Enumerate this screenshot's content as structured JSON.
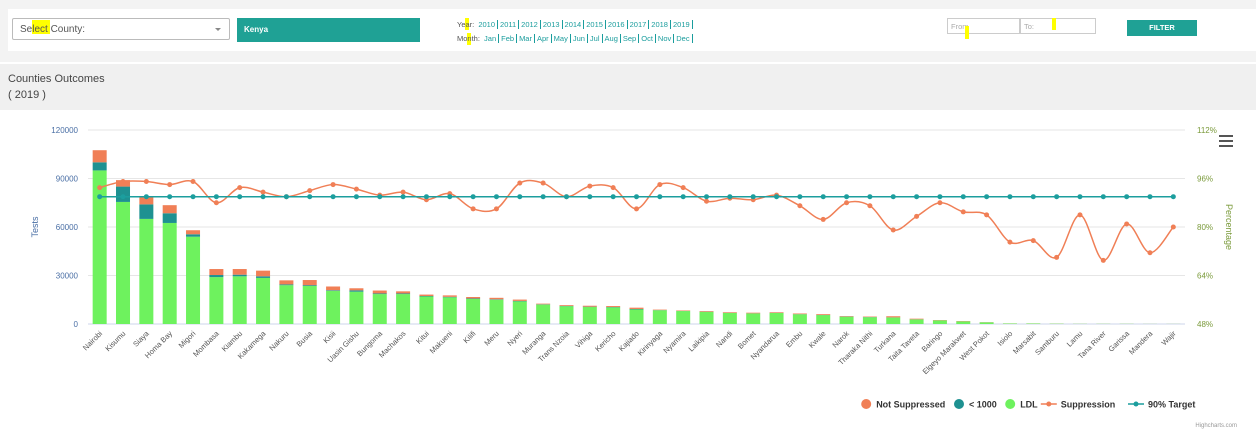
{
  "filters": {
    "county_placeholder": "Select County:",
    "country": "Kenya",
    "year_label": "Year:",
    "years": [
      "2010",
      "2011",
      "2012",
      "2013",
      "2014",
      "2015",
      "2016",
      "2017",
      "2018",
      "2019"
    ],
    "month_label": "Month:",
    "months": [
      "Jan",
      "Feb",
      "Mar",
      "Apr",
      "May",
      "Jun",
      "Jul",
      "Aug",
      "Sep",
      "Oct",
      "Nov",
      "Dec"
    ],
    "from": "From",
    "to": "To:",
    "button": "FILTER"
  },
  "panel": {
    "title": "Counties Outcomes",
    "subtitle": "( 2019 )"
  },
  "credit": "Highcharts.com",
  "chart_data": {
    "type": "bar",
    "categories": [
      "Nairobi",
      "Kisumu",
      "Siaya",
      "Homa Bay",
      "Migori",
      "Mombasa",
      "Kiambu",
      "Kakamega",
      "Nakuru",
      "Busia",
      "Kisii",
      "Uasin Gishu",
      "Bungoma",
      "Machakos",
      "Kitui",
      "Makueni",
      "Kilifi",
      "Meru",
      "Nyeri",
      "Muranga",
      "Trans Nzoia",
      "Vihiga",
      "Kericho",
      "Kajiado",
      "Kirinyaga",
      "Nyamira",
      "Laikipia",
      "Nandi",
      "Bomet",
      "Nyandarua",
      "Embu",
      "Kwale",
      "Narok",
      "Tharaka Nithi",
      "Turkana",
      "Taita Taveta",
      "Baringo",
      "Elgeyo Marakwet",
      "West Pokot",
      "Isiolo",
      "Marsabit",
      "Samburu",
      "Lamu",
      "Tana River",
      "Garissa",
      "Mandera",
      "Wajir"
    ],
    "ylabel": "Tests",
    "y2label": "Percentage",
    "ylim": [
      0,
      120000
    ],
    "yticks": [
      0,
      30000,
      60000,
      90000,
      120000
    ],
    "y2lim": [
      48,
      112
    ],
    "y2ticks": [
      {
        "value": 48,
        "label": "48%"
      },
      {
        "value": 64,
        "label": "64%"
      },
      {
        "value": 80,
        "label": "80%"
      },
      {
        "value": 96,
        "label": "96%"
      },
      {
        "value": 112,
        "label": "112%"
      }
    ],
    "series": [
      {
        "name": "Not Suppressed",
        "type": "bar",
        "color": "#f07f56",
        "values": [
          7500,
          4000,
          4500,
          5000,
          2500,
          3700,
          3500,
          3500,
          2500,
          3200,
          2300,
          1300,
          1800,
          1300,
          900,
          900,
          900,
          900,
          800,
          400,
          500,
          600,
          600,
          800,
          300,
          300,
          400,
          400,
          400,
          400,
          400,
          500,
          300,
          300,
          700,
          400,
          200,
          200,
          100,
          50,
          50,
          50,
          30,
          30,
          30,
          20,
          20
        ]
      },
      {
        "name": "< 1000",
        "type": "bar",
        "color": "#1e9191",
        "values": [
          5000,
          9500,
          9000,
          6000,
          1500,
          1300,
          1000,
          1000,
          500,
          500,
          400,
          800,
          400,
          400,
          300,
          300,
          300,
          300,
          300,
          200,
          200,
          200,
          200,
          300,
          100,
          100,
          100,
          100,
          100,
          100,
          100,
          100,
          100,
          100,
          100,
          100,
          50,
          50,
          50,
          20,
          20,
          20,
          10,
          10,
          10,
          10,
          10
        ]
      },
      {
        "name": "LDL",
        "type": "bar",
        "color": "#6ef25e",
        "values": [
          95000,
          75500,
          65000,
          62500,
          54000,
          29000,
          29500,
          28500,
          24000,
          23500,
          20500,
          20000,
          18500,
          18500,
          17000,
          16500,
          15500,
          15000,
          14000,
          12000,
          11000,
          10500,
          10300,
          9000,
          8500,
          8000,
          7500,
          6800,
          6500,
          6800,
          6000,
          5500,
          4500,
          4200,
          4000,
          2800,
          2200,
          1600,
          1000,
          300,
          300,
          200,
          100,
          100,
          100,
          50,
          50
        ]
      },
      {
        "name": "Suppression",
        "type": "line",
        "axis": "y2",
        "color": "#f07f56",
        "values": [
          93,
          95,
          95,
          94,
          95,
          88,
          93,
          91.5,
          90,
          92,
          94,
          92.5,
          90.5,
          91.5,
          89,
          91,
          86,
          86,
          94.5,
          94.5,
          90,
          93.5,
          93,
          86,
          94,
          93,
          88.5,
          89.5,
          89,
          90.5,
          87,
          82.5,
          88,
          87,
          79,
          83.5,
          88,
          85,
          84,
          75,
          75.5,
          70,
          84,
          69,
          81,
          71.5,
          80
        ]
      },
      {
        "name": "90% Target",
        "type": "line",
        "axis": "y2",
        "color": "#1c9e9e",
        "values": [
          90,
          90,
          90,
          90,
          90,
          90,
          90,
          90,
          90,
          90,
          90,
          90,
          90,
          90,
          90,
          90,
          90,
          90,
          90,
          90,
          90,
          90,
          90,
          90,
          90,
          90,
          90,
          90,
          90,
          90,
          90,
          90,
          90,
          90,
          90,
          90,
          90,
          90,
          90,
          90,
          90,
          90,
          90,
          90,
          90,
          90,
          90
        ]
      }
    ],
    "grid": true,
    "legend": "bottom-right"
  }
}
